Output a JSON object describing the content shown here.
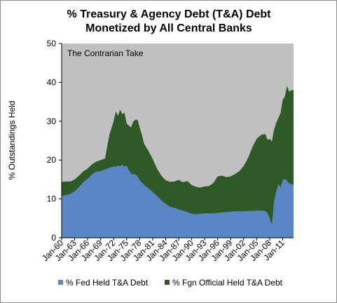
{
  "chart_data": {
    "type": "area",
    "title": [
      "% Treasury & Agency Debt (T&A) Debt",
      "Monetized by All Central Banks"
    ],
    "ylabel": "% Outstandings Held",
    "xlabel": "",
    "ylim": [
      0,
      50
    ],
    "yticks": [
      0,
      10,
      20,
      30,
      40,
      50
    ],
    "xlim": [
      1960,
      2013.5
    ],
    "xticks": [
      "Jan-60",
      "Jan-63",
      "Jan-66",
      "Jan-69",
      "Jan-72",
      "Jan-75",
      "Jan-78",
      "Jan-81",
      "Jan-84",
      "Jan-87",
      "Jan-90",
      "Jan-93",
      "Jan-96",
      "Jan-99",
      "Jan-02",
      "Jan-05",
      "Jan-08",
      "Jan-11"
    ],
    "annotation": "The Contrarian Take",
    "stacked": true,
    "grid": false,
    "legend_position": "bottom",
    "colors": {
      "plot_bg": "#c0c0c0",
      "fed": "#5b86c5",
      "fgn": "#2f5a27"
    },
    "x": [
      1960,
      1961,
      1962,
      1963,
      1964,
      1965,
      1966,
      1967,
      1968,
      1969,
      1970,
      1971,
      1972,
      1972.5,
      1973,
      1973.5,
      1974,
      1974.5,
      1975,
      1975.5,
      1976,
      1976.5,
      1977,
      1977.5,
      1978,
      1978.5,
      1979,
      1980,
      1981,
      1982,
      1983,
      1984,
      1985,
      1986,
      1987,
      1988,
      1989,
      1990,
      1991,
      1992,
      1993,
      1994,
      1995,
      1996,
      1997,
      1998,
      1999,
      2000,
      2001,
      2002,
      2003,
      2004,
      2005,
      2006,
      2007,
      2007.5,
      2008,
      2008.5,
      2009,
      2009.5,
      2010,
      2010.5,
      2011,
      2011.5,
      2012,
      2012.5,
      2013,
      2013.5
    ],
    "series": [
      {
        "name": "% Fed Held T&A Debt",
        "values": [
          10.8,
          11.0,
          11.3,
          12.0,
          13.0,
          14.3,
          15.2,
          16.3,
          17.0,
          17.2,
          17.6,
          18.0,
          18.4,
          18.3,
          18.6,
          18.4,
          18.8,
          18.3,
          18.6,
          17.4,
          16.6,
          16.3,
          16.4,
          15.8,
          14.8,
          14.2,
          13.6,
          12.8,
          11.8,
          10.8,
          9.6,
          8.7,
          8.0,
          7.7,
          7.3,
          7.0,
          6.6,
          6.2,
          6.1,
          6.2,
          6.3,
          6.3,
          6.3,
          6.4,
          6.5,
          6.6,
          6.7,
          6.8,
          6.8,
          6.8,
          6.9,
          6.9,
          7.0,
          7.0,
          6.9,
          6.3,
          5.0,
          3.3,
          9.5,
          12.0,
          13.8,
          13.0,
          14.8,
          15.2,
          14.6,
          14.0,
          13.8,
          13.5
        ]
      },
      {
        "name": "% Fgn Official Held T&A Debt",
        "values": [
          3.6,
          3.5,
          3.2,
          3.0,
          3.0,
          2.8,
          2.6,
          2.6,
          2.6,
          2.8,
          2.8,
          8.5,
          11.6,
          14.2,
          12.8,
          14.6,
          13.0,
          13.9,
          10.8,
          11.5,
          11.8,
          13.6,
          14.0,
          14.6,
          13.6,
          12.3,
          10.6,
          9.6,
          8.5,
          7.0,
          6.4,
          6.1,
          6.4,
          6.8,
          7.6,
          7.3,
          8.0,
          7.4,
          7.0,
          6.7,
          6.9,
          7.0,
          7.8,
          9.4,
          9.5,
          9.0,
          9.1,
          9.6,
          10.4,
          11.7,
          13.6,
          16.4,
          18.5,
          19.5,
          19.8,
          18.9,
          20.4,
          21.5,
          18.3,
          17.6,
          17.0,
          19.1,
          20.7,
          21.2,
          24.5,
          23.6,
          24.2,
          24.5
        ]
      }
    ]
  }
}
